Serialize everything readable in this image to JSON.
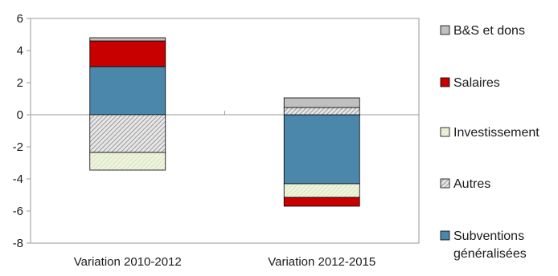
{
  "chart_data": {
    "type": "bar",
    "stacked": true,
    "title": "",
    "xlabel": "",
    "ylabel": "",
    "ylim": [
      -8,
      6
    ],
    "yticks": [
      -8,
      -6,
      -4,
      -2,
      0,
      2,
      4,
      6
    ],
    "grid": false,
    "legend_position": "right",
    "categories": [
      "Variation 2010-2012",
      "Variation 2012-2015"
    ],
    "series": [
      {
        "name": "Subventions généralisées",
        "color": "#4a87ab",
        "pattern": "solid",
        "values": [
          3.0,
          -4.3
        ]
      },
      {
        "name": "Autres",
        "color": "#c8c8c8",
        "pattern": "hatch",
        "values": [
          -2.35,
          0.45
        ]
      },
      {
        "name": "Investissement",
        "color": "#eef2dc",
        "pattern": "solid-light",
        "values": [
          -1.1,
          -0.85
        ]
      },
      {
        "name": "Salaires",
        "color": "#c80000",
        "pattern": "solid",
        "values": [
          1.6,
          -0.55
        ]
      },
      {
        "name": "B&S et dons",
        "color": "#c0c0c0",
        "pattern": "solid",
        "values": [
          0.2,
          0.6
        ]
      }
    ],
    "legend": [
      {
        "label": "B&S et dons",
        "series": 4
      },
      {
        "label": "Salaires",
        "series": 3
      },
      {
        "label": "Investissement",
        "series": 2
      },
      {
        "label": "Autres",
        "series": 1
      },
      {
        "label": "Subventions",
        "label2": "généralisées",
        "series": 0
      }
    ]
  }
}
